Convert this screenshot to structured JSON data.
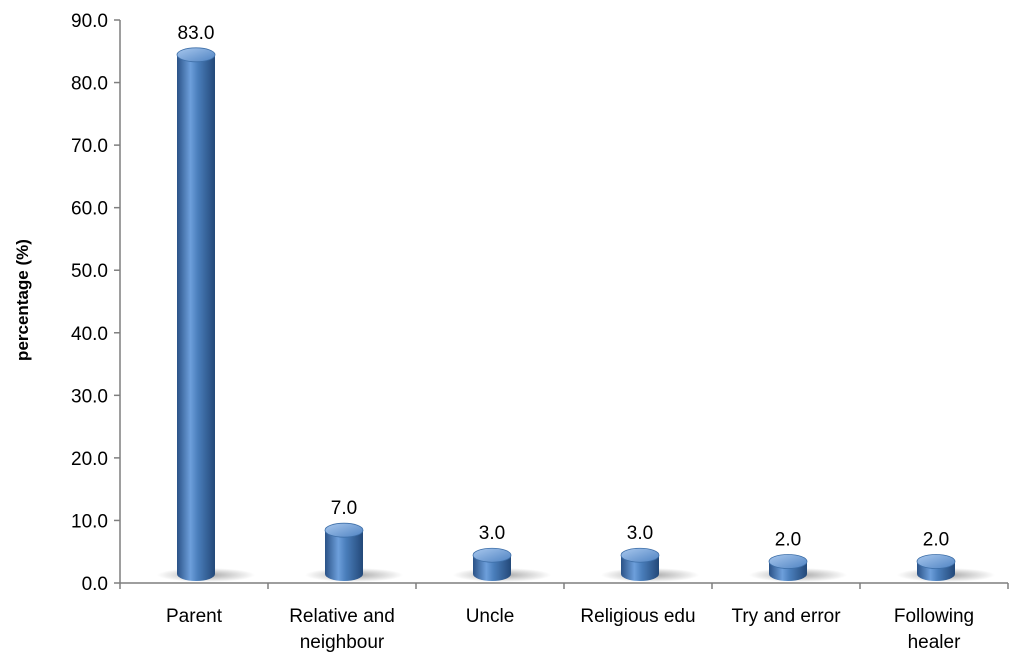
{
  "chart_data": {
    "type": "bar",
    "title": "",
    "xlabel": "",
    "ylabel": "percentage (%)",
    "ylim": [
      0,
      90
    ],
    "yticks": [
      "0.0",
      "10.0",
      "20.0",
      "30.0",
      "40.0",
      "50.0",
      "60.0",
      "70.0",
      "80.0",
      "90.0"
    ],
    "categories": [
      [
        "Parent"
      ],
      [
        "Relative and",
        "neighbour"
      ],
      [
        "Uncle"
      ],
      [
        "Religious edu"
      ],
      [
        "Try and error"
      ],
      [
        "Following",
        "healer"
      ]
    ],
    "values": [
      83.0,
      7.0,
      3.0,
      3.0,
      2.0,
      2.0
    ],
    "data_labels": [
      "83.0",
      "7.0",
      "3.0",
      "3.0",
      "2.0",
      "2.0"
    ],
    "grid": false,
    "legend": "none",
    "bar_style": "3d-cylinder",
    "colors": {
      "bar": "#4a7ebb",
      "bar_dark": "#2a5287",
      "bar_light": "#9cc0ea",
      "axis": "#7f7f7f"
    }
  }
}
